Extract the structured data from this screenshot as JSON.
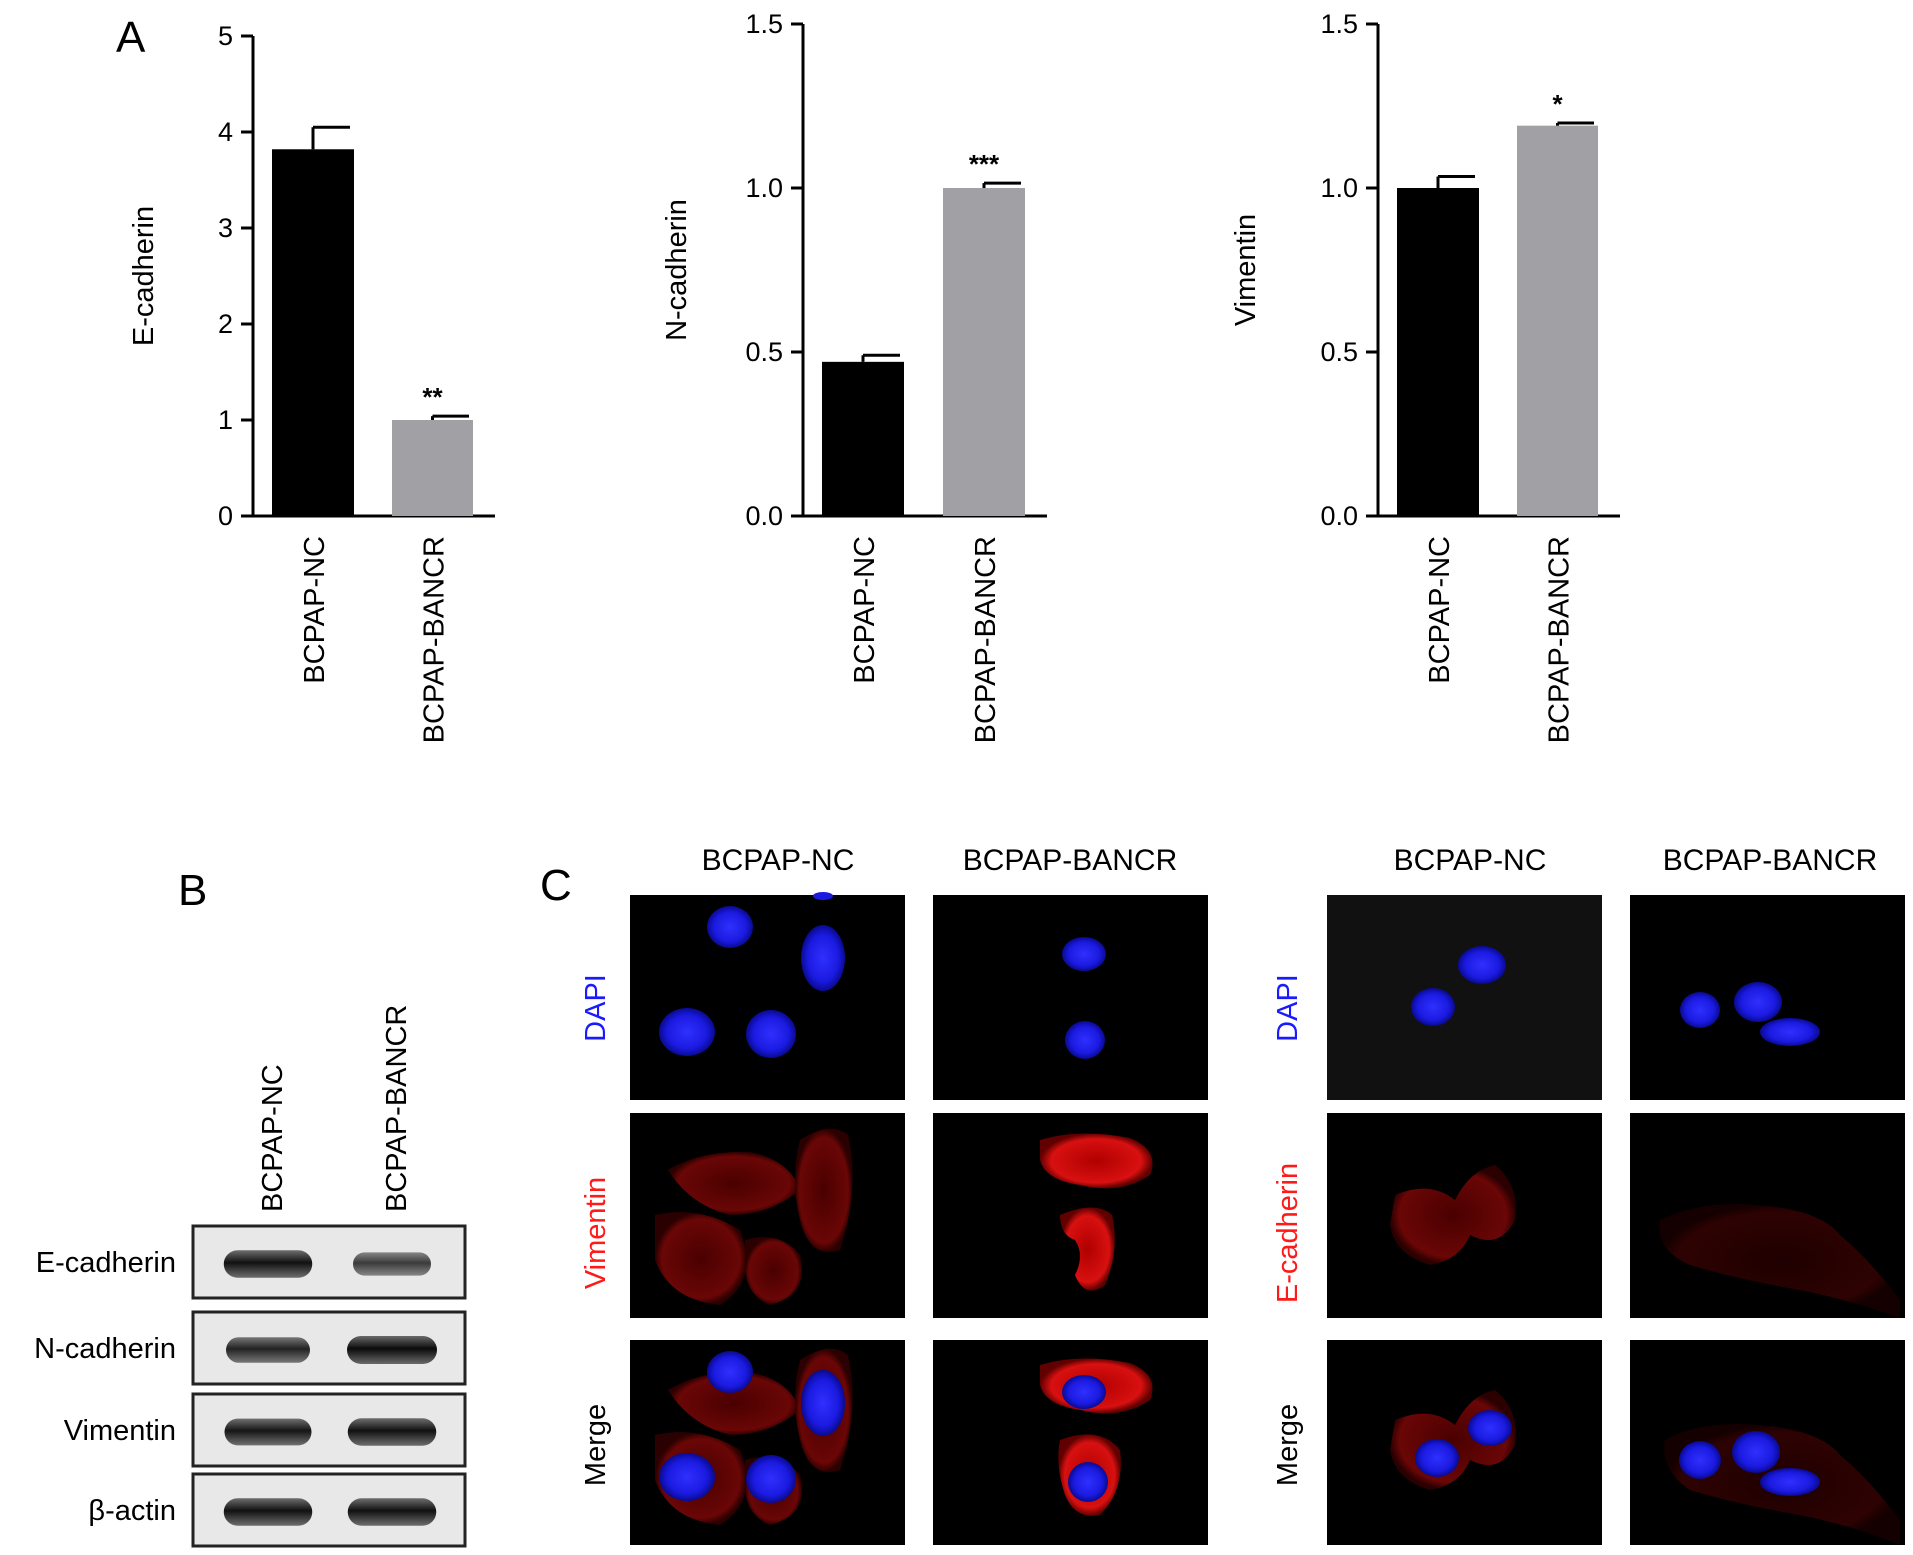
{
  "panels": {
    "a": "A",
    "b": "B",
    "c": "C"
  },
  "colors": {
    "nc_bar": "#000000",
    "bancr_bar": "#a0a0a5",
    "dapi": "#1a1aff",
    "red_stain": "#ff1a1a"
  },
  "chart_data": [
    {
      "type": "bar",
      "ylabel": "E-cadherin",
      "categories": [
        "BCPAP-NC",
        "BCPAP-BANCR"
      ],
      "values": [
        3.82,
        1.0
      ],
      "errors": [
        0.23,
        0.04
      ],
      "significance": [
        "",
        "**"
      ],
      "ylim": [
        0,
        5
      ],
      "yticks": [
        "0",
        "1",
        "2",
        "3",
        "4",
        "5"
      ],
      "ytick_values": [
        0,
        1,
        2,
        3,
        4,
        5
      ]
    },
    {
      "type": "bar",
      "ylabel": "N-cadherin",
      "categories": [
        "BCPAP-NC",
        "BCPAP-BANCR"
      ],
      "values": [
        0.47,
        1.0
      ],
      "errors": [
        0.02,
        0.015
      ],
      "significance": [
        "",
        "***"
      ],
      "ylim": [
        0,
        1.5
      ],
      "yticks": [
        "0.0",
        "0.5",
        "1.0",
        "1.5"
      ],
      "ytick_values": [
        0,
        0.5,
        1.0,
        1.5
      ]
    },
    {
      "type": "bar",
      "ylabel": "Vimentin",
      "categories": [
        "BCPAP-NC",
        "BCPAP-BANCR"
      ],
      "values": [
        1.0,
        1.19
      ],
      "errors": [
        0.035,
        0.008
      ],
      "significance": [
        "",
        "*"
      ],
      "ylim": [
        0,
        1.5
      ],
      "yticks": [
        "0.0",
        "0.5",
        "1.0",
        "1.5"
      ],
      "ytick_values": [
        0,
        0.5,
        1.0,
        1.5
      ]
    }
  ],
  "western_blot": {
    "lanes": [
      "BCPAP-NC",
      "BCPAP-BANCR"
    ],
    "bands": [
      {
        "label": "E-cadherin",
        "intensity": [
          0.95,
          0.6
        ]
      },
      {
        "label": "N-cadherin",
        "intensity": [
          0.8,
          1.0
        ]
      },
      {
        "label": "Vimentin",
        "intensity": [
          0.9,
          0.95
        ]
      },
      {
        "label": "β-actin",
        "intensity": [
          0.95,
          0.95
        ]
      }
    ]
  },
  "if_left": {
    "columns": [
      "BCPAP-NC",
      "BCPAP-BANCR"
    ],
    "rows": [
      "DAPI",
      "Vimentin",
      "Merge"
    ]
  },
  "if_right": {
    "columns": [
      "BCPAP-NC",
      "BCPAP-BANCR"
    ],
    "rows": [
      "DAPI",
      "E-cadherin",
      "Merge"
    ]
  }
}
